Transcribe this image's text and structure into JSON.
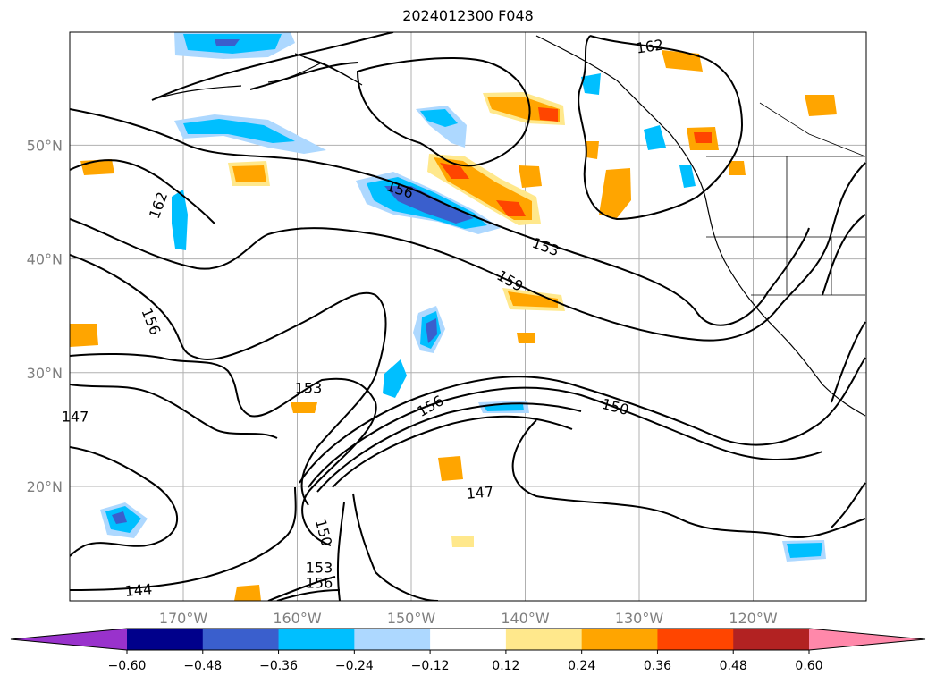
{
  "title": "2024012300 F048",
  "map": {
    "lat_ticks": [
      {
        "value": 20,
        "label": "20°N"
      },
      {
        "value": 30,
        "label": "30°N"
      },
      {
        "value": 40,
        "label": "40°N"
      },
      {
        "value": 50,
        "label": "50°N"
      }
    ],
    "lon_ticks": [
      {
        "value": -170,
        "label": "170°W"
      },
      {
        "value": -160,
        "label": "160°W"
      },
      {
        "value": -150,
        "label": "150°W"
      },
      {
        "value": -140,
        "label": "140°W"
      },
      {
        "value": -130,
        "label": "130°W"
      },
      {
        "value": -120,
        "label": "120°W"
      }
    ],
    "contour_labels": [
      "162",
      "162",
      "156",
      "153",
      "159",
      "156",
      "153",
      "156",
      "150",
      "147",
      "150",
      "153",
      "156",
      "144",
      "147"
    ]
  },
  "colorbar": {
    "colors": [
      "#9932cc",
      "#00008b",
      "#3a5fcd",
      "#00bfff",
      "#add8ff",
      "#ffffff",
      "#ffe88c",
      "#ffa500",
      "#ff4500",
      "#b22222",
      "#ff88aa"
    ],
    "tick_labels": [
      "−0.60",
      "−0.48",
      "−0.36",
      "−0.24",
      "−0.12",
      "0.12",
      "0.24",
      "0.36",
      "0.48",
      "0.60"
    ]
  }
}
